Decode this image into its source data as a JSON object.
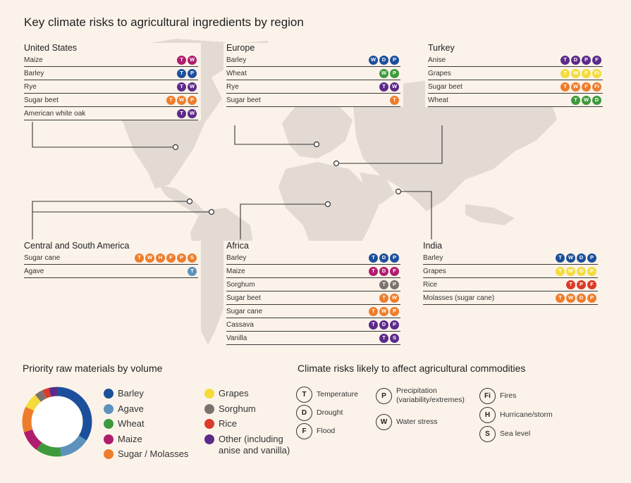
{
  "title": "Key climate risks to agricultural ingredients by region",
  "badge_colors": {
    "purple": "#5c2a8a",
    "magenta": "#b01c6e",
    "blue": "#1c4f9c",
    "green": "#3d9a3c",
    "orange": "#ee7d2b",
    "yellow": "#f3dc3a",
    "gray": "#7b7270",
    "red": "#dc3b2a",
    "steel": "#5d92bd"
  },
  "regions": {
    "united_states": {
      "title": "United States",
      "rows": [
        {
          "name": "Maize",
          "badges": [
            {
              "l": "T",
              "c": "#b01c6e"
            },
            {
              "l": "W",
              "c": "#b01c6e"
            }
          ]
        },
        {
          "name": "Barley",
          "badges": [
            {
              "l": "T",
              "c": "#1c4f9c"
            },
            {
              "l": "P",
              "c": "#1c4f9c"
            }
          ]
        },
        {
          "name": "Rye",
          "badges": [
            {
              "l": "T",
              "c": "#5c2a8a"
            },
            {
              "l": "W",
              "c": "#5c2a8a"
            }
          ]
        },
        {
          "name": "Sugar beet",
          "badges": [
            {
              "l": "T",
              "c": "#ee7d2b"
            },
            {
              "l": "W",
              "c": "#ee7d2b"
            },
            {
              "l": "P",
              "c": "#ee7d2b"
            }
          ]
        },
        {
          "name": "American white oak",
          "badges": [
            {
              "l": "T",
              "c": "#5c2a8a"
            },
            {
              "l": "W",
              "c": "#5c2a8a"
            }
          ]
        }
      ]
    },
    "europe": {
      "title": "Europe",
      "rows": [
        {
          "name": "Barley",
          "badges": [
            {
              "l": "W",
              "c": "#1c4f9c"
            },
            {
              "l": "D",
              "c": "#1c4f9c"
            },
            {
              "l": "P",
              "c": "#1c4f9c"
            }
          ]
        },
        {
          "name": "Wheat",
          "badges": [
            {
              "l": "W",
              "c": "#3d9a3c"
            },
            {
              "l": "P",
              "c": "#3d9a3c"
            }
          ]
        },
        {
          "name": "Rye",
          "badges": [
            {
              "l": "T",
              "c": "#5c2a8a"
            },
            {
              "l": "W",
              "c": "#5c2a8a"
            }
          ]
        },
        {
          "name": "Sugar beet",
          "badges": [
            {
              "l": "T",
              "c": "#ee7d2b"
            }
          ]
        }
      ]
    },
    "turkey": {
      "title": "Turkey",
      "rows": [
        {
          "name": "Anise",
          "badges": [
            {
              "l": "T",
              "c": "#5c2a8a"
            },
            {
              "l": "D",
              "c": "#5c2a8a"
            },
            {
              "l": "P",
              "c": "#5c2a8a"
            },
            {
              "l": "F",
              "c": "#5c2a8a"
            }
          ]
        },
        {
          "name": "Grapes",
          "badges": [
            {
              "l": "T",
              "c": "#f3dc3a"
            },
            {
              "l": "W",
              "c": "#f3dc3a"
            },
            {
              "l": "F",
              "c": "#f3dc3a"
            },
            {
              "l": "Fi",
              "c": "#f3dc3a"
            }
          ]
        },
        {
          "name": "Sugar beet",
          "badges": [
            {
              "l": "T",
              "c": "#ee7d2b"
            },
            {
              "l": "W",
              "c": "#ee7d2b"
            },
            {
              "l": "F",
              "c": "#ee7d2b"
            },
            {
              "l": "Fi",
              "c": "#ee7d2b"
            }
          ]
        },
        {
          "name": "Wheat",
          "badges": [
            {
              "l": "T",
              "c": "#3d9a3c"
            },
            {
              "l": "W",
              "c": "#3d9a3c"
            },
            {
              "l": "D",
              "c": "#3d9a3c"
            }
          ]
        }
      ]
    },
    "central_south_america": {
      "title": "Central and South America",
      "rows": [
        {
          "name": "Sugar cane",
          "badges": [
            {
              "l": "T",
              "c": "#ee7d2b"
            },
            {
              "l": "W",
              "c": "#ee7d2b"
            },
            {
              "l": "H",
              "c": "#ee7d2b"
            },
            {
              "l": "F",
              "c": "#ee7d2b"
            },
            {
              "l": "P",
              "c": "#ee7d2b"
            },
            {
              "l": "S",
              "c": "#ee7d2b"
            }
          ]
        },
        {
          "name": "Agave",
          "badges": [
            {
              "l": "T",
              "c": "#5d92bd"
            }
          ]
        }
      ]
    },
    "africa": {
      "title": "Africa",
      "rows": [
        {
          "name": "Barley",
          "badges": [
            {
              "l": "T",
              "c": "#1c4f9c"
            },
            {
              "l": "D",
              "c": "#1c4f9c"
            },
            {
              "l": "P",
              "c": "#1c4f9c"
            }
          ]
        },
        {
          "name": "Maize",
          "badges": [
            {
              "l": "T",
              "c": "#b01c6e"
            },
            {
              "l": "D",
              "c": "#b01c6e"
            },
            {
              "l": "F",
              "c": "#b01c6e"
            }
          ]
        },
        {
          "name": "Sorghum",
          "badges": [
            {
              "l": "T",
              "c": "#7b7270"
            },
            {
              "l": "P",
              "c": "#7b7270"
            }
          ]
        },
        {
          "name": "Sugar beet",
          "badges": [
            {
              "l": "T",
              "c": "#ee7d2b"
            },
            {
              "l": "W",
              "c": "#ee7d2b"
            }
          ]
        },
        {
          "name": "Sugar cane",
          "badges": [
            {
              "l": "T",
              "c": "#ee7d2b"
            },
            {
              "l": "W",
              "c": "#ee7d2b"
            },
            {
              "l": "P",
              "c": "#ee7d2b"
            }
          ]
        },
        {
          "name": "Cassava",
          "badges": [
            {
              "l": "T",
              "c": "#5c2a8a"
            },
            {
              "l": "D",
              "c": "#5c2a8a"
            },
            {
              "l": "P",
              "c": "#5c2a8a"
            }
          ]
        },
        {
          "name": "Vanilla",
          "badges": [
            {
              "l": "T",
              "c": "#5c2a8a"
            },
            {
              "l": "S",
              "c": "#5c2a8a"
            }
          ]
        }
      ]
    },
    "india": {
      "title": "India",
      "rows": [
        {
          "name": "Barley",
          "badges": [
            {
              "l": "T",
              "c": "#1c4f9c"
            },
            {
              "l": "W",
              "c": "#1c4f9c"
            },
            {
              "l": "D",
              "c": "#1c4f9c"
            },
            {
              "l": "P",
              "c": "#1c4f9c"
            }
          ]
        },
        {
          "name": "Grapes",
          "badges": [
            {
              "l": "T",
              "c": "#f3dc3a"
            },
            {
              "l": "W",
              "c": "#f3dc3a"
            },
            {
              "l": "D",
              "c": "#f3dc3a"
            },
            {
              "l": "P",
              "c": "#f3dc3a"
            }
          ]
        },
        {
          "name": "Rice",
          "badges": [
            {
              "l": "T",
              "c": "#dc3b2a"
            },
            {
              "l": "P",
              "c": "#dc3b2a"
            },
            {
              "l": "F",
              "c": "#dc3b2a"
            }
          ]
        },
        {
          "name": "Molasses (sugar cane)",
          "badges": [
            {
              "l": "T",
              "c": "#ee7d2b"
            },
            {
              "l": "W",
              "c": "#ee7d2b"
            },
            {
              "l": "D",
              "c": "#ee7d2b"
            },
            {
              "l": "P",
              "c": "#ee7d2b"
            }
          ]
        }
      ]
    }
  },
  "priority": {
    "title": "Priority raw materials by volume",
    "items": [
      {
        "label": "Barley",
        "color": "#1c4f9c",
        "share": 34
      },
      {
        "label": "Agave",
        "color": "#5d92bd",
        "share": 14
      },
      {
        "label": "Wheat",
        "color": "#3d9a3c",
        "share": 12
      },
      {
        "label": "Maize",
        "color": "#b01c6e",
        "share": 10
      },
      {
        "label": "Sugar / Molasses",
        "color": "#ee7d2b",
        "share": 12
      },
      {
        "label": "Grapes",
        "color": "#f3dc3a",
        "share": 7
      },
      {
        "label": "Sorghum",
        "color": "#7b7270",
        "share": 4
      },
      {
        "label": "Rice",
        "color": "#dc3b2a",
        "share": 3
      },
      {
        "label": "Other (including anise and vanilla)",
        "color": "#5c2a8a",
        "share": 4
      }
    ]
  },
  "risks": {
    "title": "Climate risks likely to affect agricultural commodities",
    "items": [
      {
        "code": "T",
        "label": "Temperature"
      },
      {
        "code": "D",
        "label": "Drought"
      },
      {
        "code": "F",
        "label": "Flood"
      },
      {
        "code": "P",
        "label": "Precipitation (variability/extremes)"
      },
      {
        "code": "W",
        "label": "Water stress"
      },
      {
        "code": "Fi",
        "label": "Fires"
      },
      {
        "code": "H",
        "label": "Hurricane/storm"
      },
      {
        "code": "S",
        "label": "Sea level"
      }
    ]
  }
}
